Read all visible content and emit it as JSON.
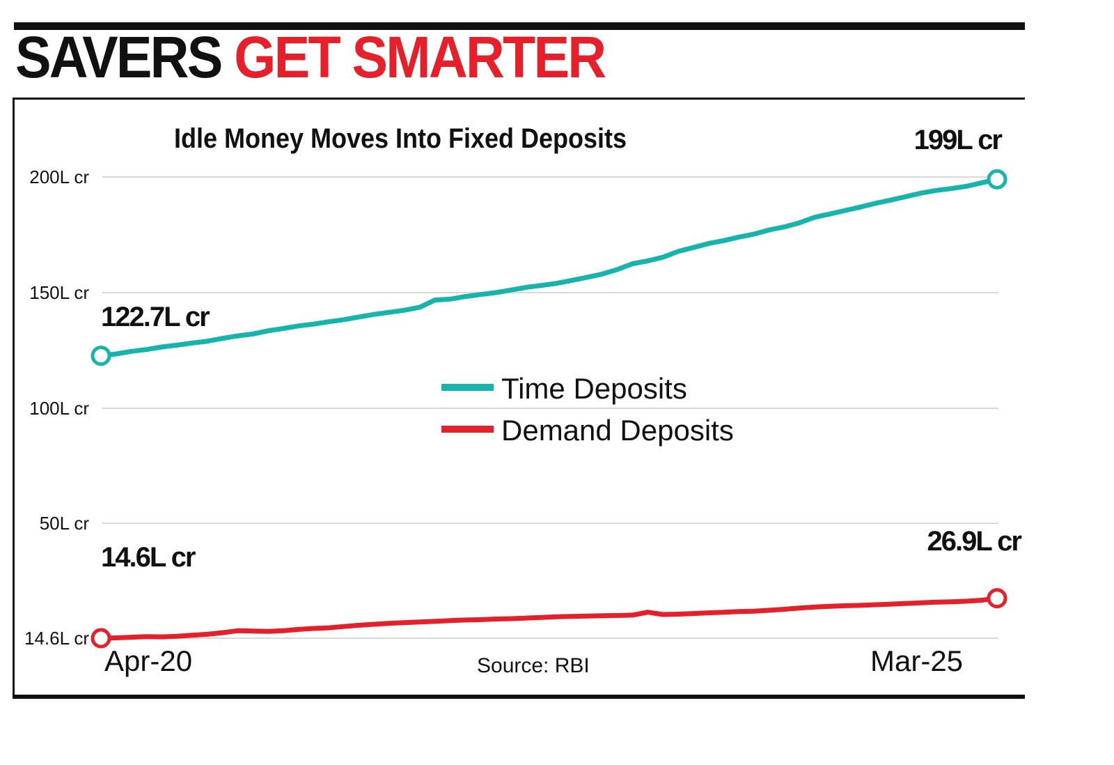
{
  "headline": {
    "part1": "SAVERS",
    "part2": "GET SMARTER"
  },
  "colors": {
    "time": "#17b3ad",
    "demand": "#e5202a",
    "grid": "#d9d9d9",
    "text": "#111111"
  },
  "chart_data": {
    "type": "line",
    "title": "Idle Money Moves Into Fixed Deposits",
    "source": "Source: RBI",
    "y_ticks": [
      {
        "value": 14.6,
        "label": "14.6L cr"
      },
      {
        "value": 50,
        "label": "50L cr"
      },
      {
        "value": 100,
        "label": "100L cr"
      },
      {
        "value": 150,
        "label": "150L cr"
      },
      {
        "value": 200,
        "label": "200L cr"
      }
    ],
    "ylim": [
      14.6,
      200
    ],
    "x_start_label": "Apr-20",
    "x_end_label": "Mar-25",
    "x_points": 60,
    "legend_placement": "center",
    "series": [
      {
        "name": "Time Deposits",
        "color": "#17b3ad",
        "start_label": "122.7L cr",
        "end_label": "199L cr",
        "values": [
          122.7,
          123.5,
          124.6,
          125.4,
          126.5,
          127.3,
          128.2,
          129.0,
          130.2,
          131.3,
          132.1,
          133.5,
          134.5,
          135.6,
          136.4,
          137.4,
          138.3,
          139.5,
          140.6,
          141.5,
          142.4,
          143.7,
          146.8,
          147.2,
          148.3,
          149.2,
          150.0,
          151.1,
          152.3,
          153.1,
          154.0,
          155.3,
          156.6,
          158.0,
          160.0,
          162.5,
          163.7,
          165.3,
          167.8,
          169.5,
          171.2,
          172.5,
          174.0,
          175.3,
          177.1,
          178.4,
          180.2,
          182.6,
          184.0,
          185.5,
          187.0,
          188.6,
          190.0,
          191.5,
          193.0,
          194.2,
          195.0,
          196.0,
          197.5,
          199.0
        ]
      },
      {
        "name": "Demand Deposits",
        "color": "#e5202a",
        "start_label": "14.6L cr",
        "end_label": "26.9L cr",
        "values": [
          14.6,
          14.7,
          14.9,
          15.1,
          15.0,
          15.2,
          15.5,
          15.8,
          16.3,
          16.9,
          16.8,
          16.7,
          16.9,
          17.3,
          17.6,
          17.8,
          18.2,
          18.6,
          18.9,
          19.2,
          19.4,
          19.6,
          19.8,
          20.0,
          20.2,
          20.3,
          20.5,
          20.6,
          20.8,
          21.0,
          21.2,
          21.3,
          21.4,
          21.5,
          21.6,
          21.7,
          22.6,
          21.9,
          22.0,
          22.2,
          22.4,
          22.6,
          22.8,
          22.9,
          23.2,
          23.5,
          23.9,
          24.2,
          24.4,
          24.6,
          24.7,
          24.9,
          25.1,
          25.3,
          25.5,
          25.7,
          25.8,
          26.0,
          26.3,
          26.9
        ]
      }
    ]
  }
}
